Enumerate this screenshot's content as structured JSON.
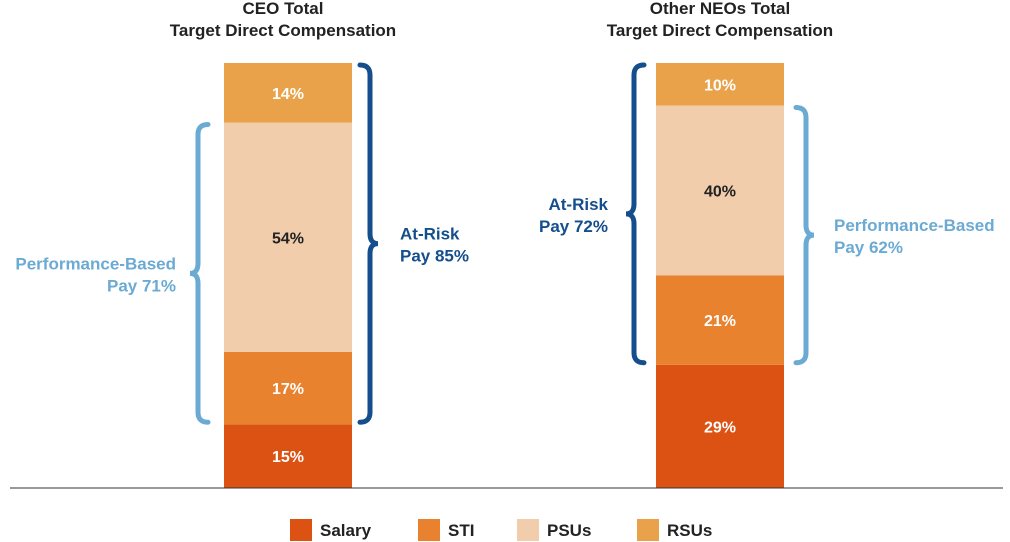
{
  "chart_data": {
    "type": "bar",
    "stacked": true,
    "series": [
      {
        "name": "Salary",
        "color": "#DC5212"
      },
      {
        "name": "STI",
        "color": "#E8822E"
      },
      {
        "name": "PSUs",
        "color": "#F1CDAB"
      },
      {
        "name": "RSUs",
        "color": "#E9A24A"
      }
    ],
    "bars": [
      {
        "title_line1": "CEO Total",
        "title_line2": "Target Direct Compensation",
        "values": [
          15,
          17,
          54,
          14
        ],
        "labels": [
          "15%",
          "17%",
          "54%",
          "14%"
        ],
        "braces": [
          {
            "line1": "Performance-Based",
            "line2": "Pay 71%",
            "color": "#6BAAD3",
            "side": "left",
            "from_segment": 1,
            "to_segment": 2
          },
          {
            "line1": "At-Risk",
            "line2": "Pay 85%",
            "color": "#144E8C",
            "side": "right",
            "from_segment": 1,
            "to_segment": 3
          }
        ]
      },
      {
        "title_line1": "Other NEOs Total",
        "title_line2": "Target Direct Compensation",
        "values": [
          29,
          21,
          40,
          10
        ],
        "labels": [
          "29%",
          "21%",
          "40%",
          "10%"
        ],
        "braces": [
          {
            "line1": "At-Risk",
            "line2": "Pay 72%",
            "color": "#144E8C",
            "side": "left",
            "from_segment": 1,
            "to_segment": 3
          },
          {
            "line1": "Performance-Based",
            "line2": "Pay 62%",
            "color": "#6BAAD3",
            "side": "right",
            "from_segment": 1,
            "to_segment": 2
          }
        ]
      }
    ],
    "legend": [
      "Salary",
      "STI",
      "PSUs",
      "RSUs"
    ],
    "legend_position": "bottom",
    "ylim": [
      0,
      100
    ]
  }
}
